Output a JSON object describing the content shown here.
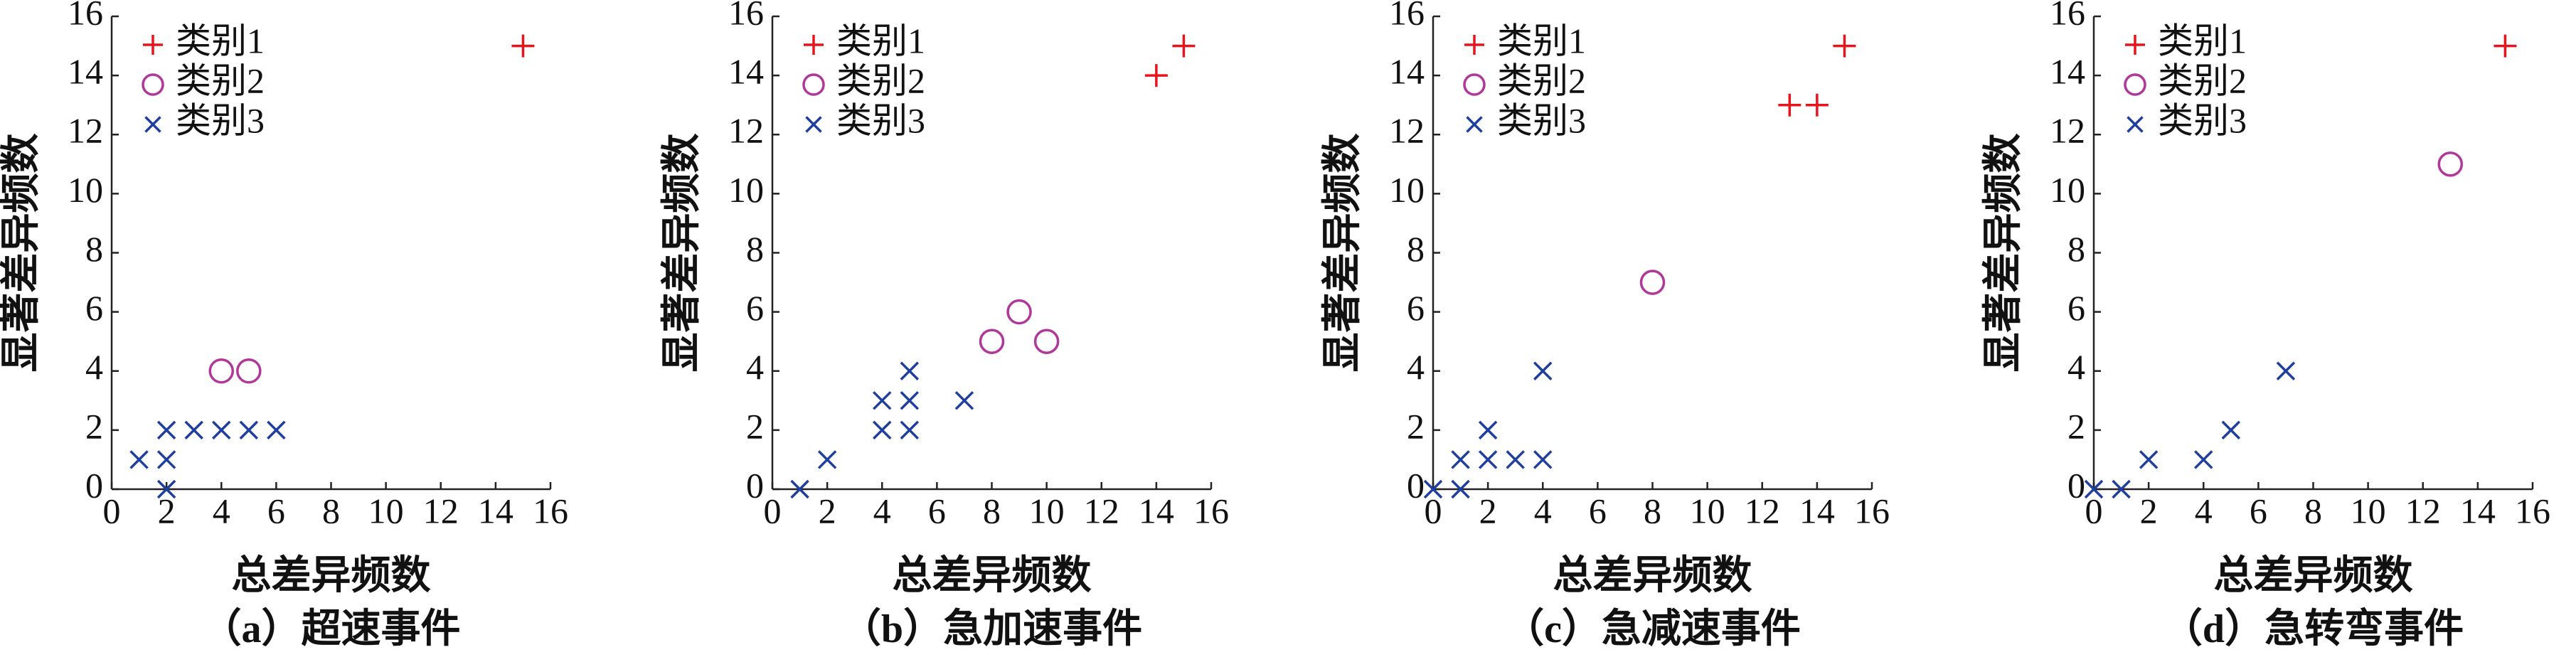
{
  "chart_data": [
    {
      "type": "scatter",
      "caption": "（a）超速事件",
      "xlabel": "总差异频数",
      "ylabel": "显著差异频数",
      "xlim": [
        0,
        16
      ],
      "ylim": [
        0,
        16
      ],
      "xticks": [
        0,
        2,
        4,
        6,
        8,
        10,
        12,
        14,
        16
      ],
      "yticks": [
        0,
        2,
        4,
        6,
        8,
        10,
        12,
        14,
        16
      ],
      "legend": "upper left",
      "series": [
        {
          "name": "类别1",
          "color": "#e8141c",
          "marker": "+",
          "x": [
            15
          ],
          "y": [
            15
          ]
        },
        {
          "name": "类别2",
          "color": "#b0389a",
          "marker": "o",
          "x": [
            4,
            5
          ],
          "y": [
            4,
            4
          ]
        },
        {
          "name": "类别3",
          "color": "#1f3f9f",
          "marker": "x",
          "x": [
            1,
            2,
            2,
            2,
            3,
            4,
            5,
            6
          ],
          "y": [
            1,
            1,
            2,
            0,
            2,
            2,
            2,
            2
          ]
        }
      ]
    },
    {
      "type": "scatter",
      "caption": "（b）急加速事件",
      "xlabel": "总差异频数",
      "ylabel": "显著差异频数",
      "xlim": [
        0,
        16
      ],
      "ylim": [
        0,
        16
      ],
      "xticks": [
        0,
        2,
        4,
        6,
        8,
        10,
        12,
        14,
        16
      ],
      "yticks": [
        0,
        2,
        4,
        6,
        8,
        10,
        12,
        14,
        16
      ],
      "legend": "upper left",
      "series": [
        {
          "name": "类别1",
          "color": "#e8141c",
          "marker": "+",
          "x": [
            14,
            15
          ],
          "y": [
            14,
            15
          ]
        },
        {
          "name": "类别2",
          "color": "#b0389a",
          "marker": "o",
          "x": [
            8,
            9,
            10
          ],
          "y": [
            5,
            6,
            5
          ]
        },
        {
          "name": "类别3",
          "color": "#1f3f9f",
          "marker": "x",
          "x": [
            1,
            2,
            4,
            4,
            5,
            5,
            5,
            7
          ],
          "y": [
            0,
            1,
            2,
            3,
            2,
            3,
            4,
            3
          ]
        }
      ]
    },
    {
      "type": "scatter",
      "caption": "（c）急减速事件",
      "xlabel": "总差异频数",
      "ylabel": "显著差异频数",
      "xlim": [
        0,
        16
      ],
      "ylim": [
        0,
        16
      ],
      "xticks": [
        0,
        2,
        4,
        6,
        8,
        10,
        12,
        14,
        16
      ],
      "yticks": [
        0,
        2,
        4,
        6,
        8,
        10,
        12,
        14,
        16
      ],
      "legend": "upper left",
      "series": [
        {
          "name": "类别1",
          "color": "#e8141c",
          "marker": "+",
          "x": [
            13,
            14,
            15
          ],
          "y": [
            13,
            13,
            15
          ]
        },
        {
          "name": "类别2",
          "color": "#b0389a",
          "marker": "o",
          "x": [
            8
          ],
          "y": [
            7
          ]
        },
        {
          "name": "类别3",
          "color": "#1f3f9f",
          "marker": "x",
          "x": [
            0,
            1,
            1,
            2,
            2,
            3,
            4,
            4
          ],
          "y": [
            0,
            0,
            1,
            1,
            2,
            1,
            1,
            4
          ]
        }
      ]
    },
    {
      "type": "scatter",
      "caption": "（d）急转弯事件",
      "xlabel": "总差异频数",
      "ylabel": "显著差异频数",
      "xlim": [
        0,
        16
      ],
      "ylim": [
        0,
        16
      ],
      "xticks": [
        0,
        2,
        4,
        6,
        8,
        10,
        12,
        14,
        16
      ],
      "yticks": [
        0,
        2,
        4,
        6,
        8,
        10,
        12,
        14,
        16
      ],
      "legend": "upper left",
      "series": [
        {
          "name": "类别1",
          "color": "#e8141c",
          "marker": "+",
          "x": [
            15
          ],
          "y": [
            15
          ]
        },
        {
          "name": "类别2",
          "color": "#b0389a",
          "marker": "o",
          "x": [
            13
          ],
          "y": [
            11
          ]
        },
        {
          "name": "类别3",
          "color": "#1f3f9f",
          "marker": "x",
          "x": [
            0,
            1,
            2,
            4,
            5,
            7
          ],
          "y": [
            0,
            0,
            1,
            1,
            2,
            4
          ]
        }
      ]
    }
  ]
}
